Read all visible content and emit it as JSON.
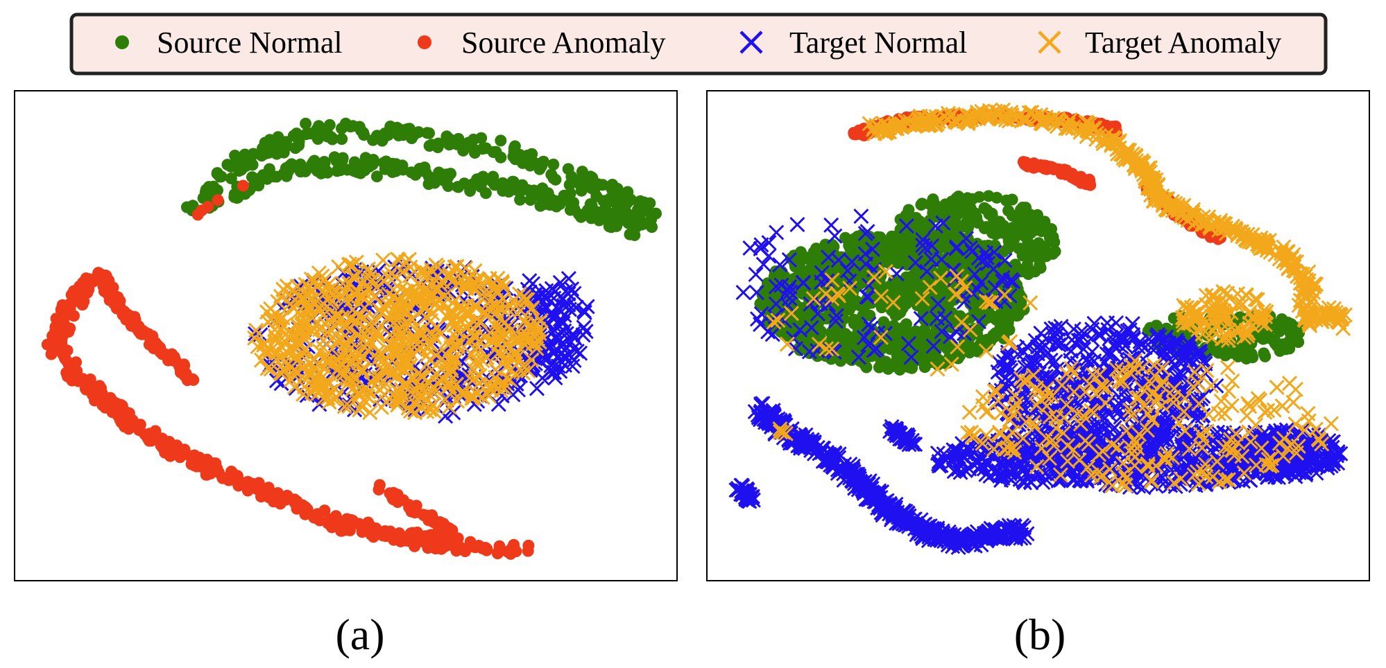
{
  "legend": {
    "entries": [
      {
        "label": "Source Normal",
        "marker": "circle",
        "color": "#2e7d07"
      },
      {
        "label": "Source Anomaly",
        "marker": "circle",
        "color": "#ee3a1a"
      },
      {
        "label": "Target Normal",
        "marker": "x",
        "color": "#1f10f0"
      },
      {
        "label": "Target Anomaly",
        "marker": "x",
        "color": "#f3a81b"
      }
    ],
    "background": "#fbe9e5"
  },
  "chart_data": [
    {
      "type": "scatter",
      "panel_caption": "(a)",
      "axes": "off",
      "xlim": [
        0,
        100
      ],
      "ylim": [
        0,
        100
      ],
      "clusters": [
        {
          "series": "Source Normal",
          "shape": "arc",
          "path": [
            [
              27,
              74
            ],
            [
              33,
              85
            ],
            [
              45,
              92
            ],
            [
              60,
              91
            ],
            [
              74,
              88
            ],
            [
              85,
              82
            ],
            [
              96,
              75
            ],
            [
              94,
              72
            ],
            [
              84,
              77
            ],
            [
              74,
              80
            ],
            [
              62,
              83
            ],
            [
              50,
              85
            ],
            [
              40,
              83
            ],
            [
              32,
              79
            ]
          ],
          "width": 4,
          "count": 420,
          "seed": 11
        },
        {
          "series": "Source Anomaly",
          "shape": "arc",
          "path": [
            [
              13,
              63
            ],
            [
              8,
              55
            ],
            [
              6,
              48
            ],
            [
              10,
              41
            ],
            [
              17,
              33
            ],
            [
              26,
              25
            ],
            [
              38,
              18
            ],
            [
              48,
              12
            ],
            [
              58,
              9
            ],
            [
              68,
              7
            ],
            [
              77,
              6
            ]
          ],
          "width": 3,
          "count": 330,
          "seed": 21
        },
        {
          "series": "Source Anomaly",
          "shape": "arc",
          "path": [
            [
              13,
              63
            ],
            [
              15,
              57
            ],
            [
              20,
              50
            ],
            [
              27,
              41
            ]
          ],
          "width": 1.8,
          "count": 90,
          "seed": 22
        },
        {
          "series": "Source Anomaly",
          "shape": "arc",
          "path": [
            [
              55,
              19
            ],
            [
              60,
              15
            ],
            [
              66,
              10
            ],
            [
              60,
              8
            ]
          ],
          "width": 1.6,
          "count": 70,
          "seed": 23
        },
        {
          "series": "Source Anomaly",
          "shape": "arc",
          "path": [
            [
              27,
              74
            ],
            [
              30,
              77
            ],
            [
              35,
              81
            ]
          ],
          "width": 0.7,
          "count": 5,
          "seed": 24
        },
        {
          "series": "Target Normal",
          "shape": "ellipse",
          "cx": 60,
          "cy": 49,
          "rx": 24,
          "ry": 16,
          "count": 380,
          "seed": 31
        },
        {
          "series": "Target Normal",
          "shape": "ellipse",
          "cx": 81,
          "cy": 52,
          "rx": 6,
          "ry": 11,
          "count": 90,
          "seed": 32
        },
        {
          "series": "Target Anomaly",
          "shape": "ellipse",
          "cx": 58,
          "cy": 50,
          "rx": 22,
          "ry": 16,
          "count": 700,
          "seed": 33
        }
      ]
    },
    {
      "type": "scatter",
      "panel_caption": "(b)",
      "axes": "off",
      "xlim": [
        0,
        100
      ],
      "ylim": [
        0,
        100
      ],
      "clusters": [
        {
          "series": "Source Normal",
          "shape": "ellipse",
          "cx": 28,
          "cy": 57,
          "rx": 20,
          "ry": 14,
          "count": 900,
          "seed": 41
        },
        {
          "series": "Source Normal",
          "shape": "ellipse",
          "cx": 40,
          "cy": 69,
          "rx": 13,
          "ry": 10,
          "count": 300,
          "seed": 42
        },
        {
          "series": "Source Normal",
          "shape": "ellipse",
          "cx": 78,
          "cy": 50,
          "rx": 12,
          "ry": 5,
          "count": 130,
          "seed": 43
        },
        {
          "series": "Source Anomaly",
          "shape": "arc",
          "path": [
            [
              22,
              91
            ],
            [
              30,
              94
            ],
            [
              42,
              95
            ],
            [
              54,
              94
            ],
            [
              62,
              92
            ]
          ],
          "width": 1.6,
          "count": 150,
          "seed": 51
        },
        {
          "series": "Source Anomaly",
          "shape": "arc",
          "path": [
            [
              48,
              85
            ],
            [
              53,
              84
            ],
            [
              58,
              81
            ]
          ],
          "width": 1.3,
          "count": 60,
          "seed": 52
        },
        {
          "series": "Source Anomaly",
          "shape": "arc",
          "path": [
            [
              67,
              80
            ],
            [
              72,
              74
            ],
            [
              77,
              70
            ]
          ],
          "width": 1.5,
          "count": 80,
          "seed": 53
        },
        {
          "series": "Target Anomaly",
          "shape": "arc",
          "path": [
            [
              24,
              92
            ],
            [
              34,
              94
            ],
            [
              46,
              95
            ],
            [
              56,
              93
            ],
            [
              62,
              89
            ],
            [
              66,
              84
            ],
            [
              68,
              78
            ],
            [
              74,
              74
            ],
            [
              82,
              70
            ],
            [
              88,
              66
            ],
            [
              91,
              60
            ],
            [
              90,
              53
            ],
            [
              95,
              55
            ],
            [
              96,
              52
            ]
          ],
          "width": 2.5,
          "count": 450,
          "seed": 61
        },
        {
          "series": "Target Anomaly",
          "shape": "ellipse",
          "cx": 78,
          "cy": 54,
          "rx": 7,
          "ry": 5,
          "count": 90,
          "seed": 62
        },
        {
          "series": "Target Normal",
          "shape": "ellipse",
          "cx": 25,
          "cy": 60,
          "rx": 22,
          "ry": 15,
          "count": 130,
          "seed": 71
        },
        {
          "series": "Target Normal",
          "shape": "ellipse",
          "cx": 60,
          "cy": 40,
          "rx": 17,
          "ry": 13,
          "count": 450,
          "seed": 72
        },
        {
          "series": "Target Normal",
          "shape": "ellipse",
          "cx": 64,
          "cy": 25,
          "rx": 30,
          "ry": 6,
          "count": 620,
          "seed": 73
        },
        {
          "series": "Target Normal",
          "shape": "ellipse",
          "cx": 87,
          "cy": 26,
          "rx": 9,
          "ry": 5,
          "count": 200,
          "seed": 74
        },
        {
          "series": "Target Normal",
          "shape": "arc",
          "path": [
            [
              8,
              35
            ],
            [
              12,
              30
            ],
            [
              18,
              26
            ],
            [
              23,
              20
            ],
            [
              28,
              14
            ],
            [
              33,
              10
            ],
            [
              38,
              8
            ],
            [
              46,
              10
            ],
            [
              48,
              10
            ]
          ],
          "width": 3,
          "count": 460,
          "seed": 75
        },
        {
          "series": "Target Normal",
          "shape": "arc",
          "path": [
            [
              5,
              19
            ],
            [
              7,
              16
            ]
          ],
          "width": 1.5,
          "count": 40,
          "seed": 76
        },
        {
          "series": "Target Normal",
          "shape": "arc",
          "path": [
            [
              28,
              31
            ],
            [
              31,
              28
            ]
          ],
          "width": 1.5,
          "count": 40,
          "seed": 77
        },
        {
          "series": "Target Anomaly",
          "shape": "ellipse",
          "cx": 67,
          "cy": 32,
          "rx": 28,
          "ry": 13,
          "count": 240,
          "seed": 81
        },
        {
          "series": "Target Anomaly",
          "shape": "ellipse",
          "cx": 30,
          "cy": 53,
          "rx": 20,
          "ry": 11,
          "count": 40,
          "seed": 82
        },
        {
          "series": "Target Anomaly",
          "shape": "arc",
          "path": [
            [
              10,
              31
            ],
            [
              13,
              30
            ]
          ],
          "width": 1,
          "count": 4,
          "seed": 83
        }
      ]
    }
  ]
}
